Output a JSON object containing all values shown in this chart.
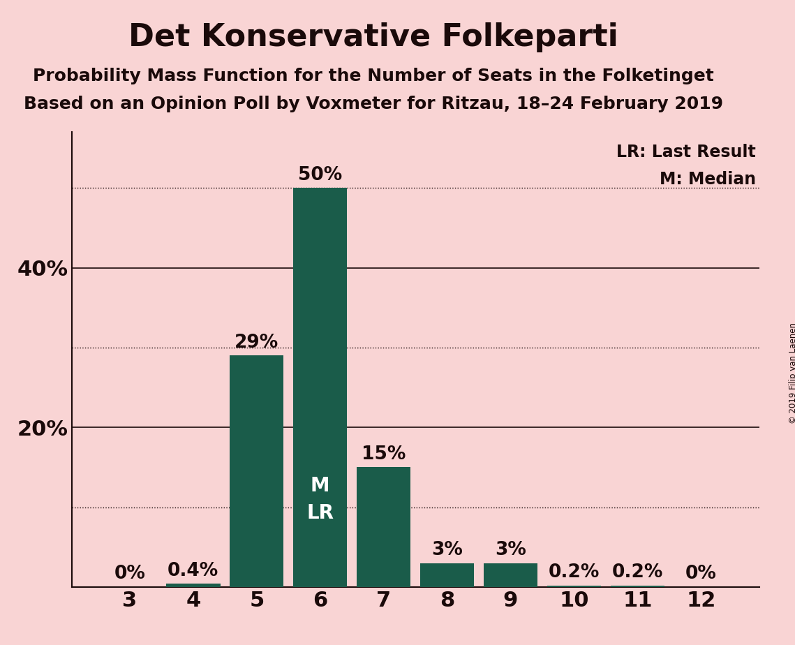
{
  "title": "Det Konservative Folkeparti",
  "subtitle1": "Probability Mass Function for the Number of Seats in the Folketinget",
  "subtitle2": "Based on an Opinion Poll by Voxmeter for Ritzau, 18–24 February 2019",
  "copyright": "© 2019 Filip van Laenen",
  "categories": [
    3,
    4,
    5,
    6,
    7,
    8,
    9,
    10,
    11,
    12
  ],
  "values": [
    0.0,
    0.4,
    29.0,
    50.0,
    15.0,
    3.0,
    3.0,
    0.2,
    0.2,
    0.0
  ],
  "labels": [
    "0%",
    "0.4%",
    "29%",
    "50%",
    "15%",
    "3%",
    "3%",
    "0.2%",
    "0.2%",
    "0%"
  ],
  "bar_color": "#1a5c4a",
  "background_color": "#f9d4d4",
  "title_color": "#1a0a0a",
  "bar_label_color_inside": "#ffffff",
  "bar_label_color_outside": "#1a0a0a",
  "median_seat": 6,
  "last_result_seat": 6,
  "legend_lr": "LR: Last Result",
  "legend_m": "M: Median",
  "ylim": [
    0,
    57
  ],
  "dotted_lines": [
    10,
    30,
    50
  ],
  "solid_lines": [
    20,
    40
  ],
  "title_fontsize": 32,
  "subtitle_fontsize": 18,
  "axis_label_fontsize": 22,
  "bar_label_fontsize": 19,
  "legend_fontsize": 17,
  "ml_label_fontsize": 20
}
